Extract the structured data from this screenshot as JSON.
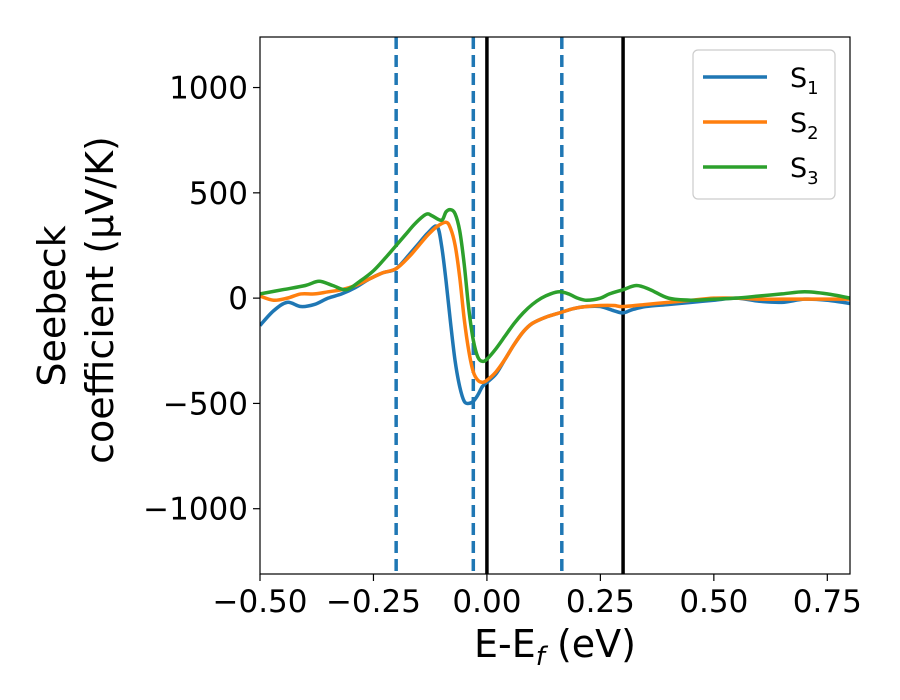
{
  "chart_data": {
    "type": "line",
    "xlabel": "E-E",
    "xlabel_sub": "f",
    "xlabel_unit": " (eV)",
    "ylabel_line1": "Seebeck",
    "ylabel_line2": "coefficient  (μV/K)",
    "xlim": [
      -0.5,
      0.8
    ],
    "ylim": [
      -1310,
      1240
    ],
    "xticks": [
      -0.5,
      -0.25,
      0.0,
      0.25,
      0.5,
      0.75
    ],
    "xtick_labels": [
      "−0.50",
      "−0.25",
      "0.00",
      "0.25",
      "0.50",
      "0.75"
    ],
    "yticks": [
      1000,
      500,
      0,
      -500,
      -1000
    ],
    "ytick_labels": [
      "1000",
      "500",
      "0",
      "−500",
      "−1000"
    ],
    "grid": false,
    "legend_position": "top-right",
    "vlines_dashed": {
      "color": "#1f77b4",
      "x": [
        -0.2,
        -0.03,
        0.165
      ]
    },
    "vlines_solid": {
      "color": "#000000",
      "x": [
        0.0,
        0.3
      ]
    },
    "series": [
      {
        "name": "S",
        "sub": "1",
        "color": "#1f77b4",
        "x": [
          -0.5,
          -0.47,
          -0.44,
          -0.41,
          -0.38,
          -0.35,
          -0.32,
          -0.29,
          -0.26,
          -0.23,
          -0.2,
          -0.17,
          -0.15,
          -0.13,
          -0.11,
          -0.1,
          -0.09,
          -0.08,
          -0.07,
          -0.06,
          -0.05,
          -0.04,
          -0.03,
          -0.02,
          -0.01,
          0.0,
          0.02,
          0.04,
          0.06,
          0.08,
          0.1,
          0.13,
          0.16,
          0.19,
          0.22,
          0.25,
          0.28,
          0.3,
          0.32,
          0.35,
          0.4,
          0.45,
          0.5,
          0.55,
          0.6,
          0.65,
          0.7,
          0.75,
          0.8
        ],
        "y": [
          -130,
          -60,
          -20,
          -40,
          -30,
          0,
          20,
          50,
          90,
          120,
          140,
          210,
          260,
          310,
          340,
          250,
          80,
          -120,
          -300,
          -420,
          -490,
          -500,
          -490,
          -460,
          -420,
          -400,
          -360,
          -290,
          -220,
          -160,
          -120,
          -90,
          -70,
          -50,
          -40,
          -40,
          -60,
          -70,
          -55,
          -40,
          -30,
          -20,
          -10,
          0,
          -15,
          -20,
          -5,
          -10,
          -25
        ]
      },
      {
        "name": "S",
        "sub": "2",
        "color": "#ff7f0e",
        "x": [
          -0.5,
          -0.47,
          -0.44,
          -0.41,
          -0.38,
          -0.35,
          -0.32,
          -0.29,
          -0.26,
          -0.23,
          -0.2,
          -0.17,
          -0.15,
          -0.13,
          -0.11,
          -0.09,
          -0.08,
          -0.07,
          -0.06,
          -0.05,
          -0.04,
          -0.03,
          -0.02,
          -0.01,
          0.0,
          0.02,
          0.04,
          0.06,
          0.08,
          0.1,
          0.13,
          0.16,
          0.19,
          0.22,
          0.25,
          0.28,
          0.3,
          0.35,
          0.4,
          0.45,
          0.5,
          0.55,
          0.6,
          0.65,
          0.7,
          0.75,
          0.8
        ],
        "y": [
          10,
          -10,
          0,
          20,
          20,
          30,
          40,
          60,
          90,
          120,
          140,
          200,
          250,
          300,
          340,
          360,
          330,
          250,
          100,
          -100,
          -250,
          -350,
          -390,
          -400,
          -390,
          -350,
          -290,
          -220,
          -160,
          -120,
          -90,
          -70,
          -50,
          -40,
          -35,
          -35,
          -40,
          -30,
          -20,
          -10,
          0,
          0,
          -5,
          -5,
          -5,
          -5,
          -5
        ]
      },
      {
        "name": "S",
        "sub": "3",
        "color": "#2ca02c",
        "x": [
          -0.5,
          -0.45,
          -0.4,
          -0.37,
          -0.34,
          -0.31,
          -0.28,
          -0.25,
          -0.22,
          -0.2,
          -0.18,
          -0.16,
          -0.14,
          -0.13,
          -0.12,
          -0.1,
          -0.09,
          -0.08,
          -0.07,
          -0.06,
          -0.05,
          -0.04,
          -0.03,
          -0.02,
          -0.01,
          0.0,
          0.02,
          0.04,
          0.06,
          0.08,
          0.1,
          0.12,
          0.14,
          0.16,
          0.18,
          0.2,
          0.22,
          0.25,
          0.27,
          0.3,
          0.33,
          0.36,
          0.4,
          0.45,
          0.5,
          0.55,
          0.6,
          0.65,
          0.7,
          0.75,
          0.8
        ],
        "y": [
          20,
          40,
          60,
          80,
          60,
          40,
          80,
          130,
          200,
          250,
          300,
          350,
          390,
          400,
          390,
          370,
          410,
          420,
          400,
          320,
          160,
          -50,
          -200,
          -280,
          -300,
          -290,
          -240,
          -180,
          -120,
          -70,
          -30,
          0,
          20,
          30,
          20,
          0,
          -10,
          0,
          20,
          40,
          60,
          40,
          0,
          -10,
          -5,
          0,
          10,
          20,
          30,
          20,
          0
        ]
      }
    ]
  }
}
